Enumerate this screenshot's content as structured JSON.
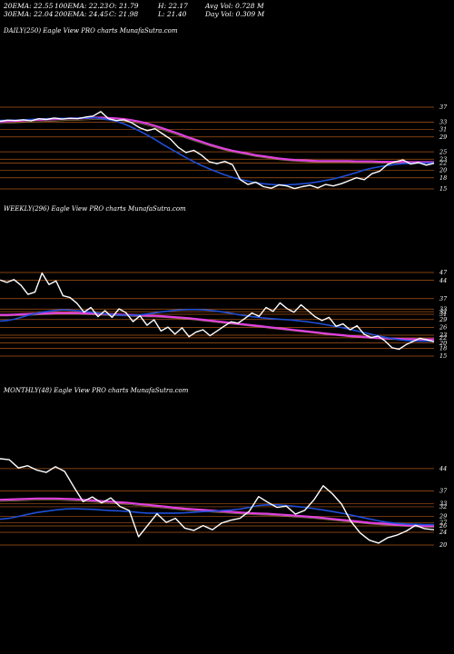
{
  "header": {
    "ema20": "20EMA: 22.55",
    "ema100": "100EMA: 22.23",
    "open": "O: 21.79",
    "high": "H: 22.17",
    "avgvol": "Avg Vol: 0.728  M",
    "ema30": "30EMA: 22.04",
    "ema200": "200EMA: 24.45",
    "close": "C: 21.98",
    "low": "L: 21.40",
    "dayvol": "Day Vol: 0.309 M"
  },
  "colors": {
    "background": "#000000",
    "price": "#ffffff",
    "ema_fast": "#1f4fd8",
    "ema_slow": "#e040e0",
    "grid": "#c8641e",
    "ema_mid": "#b8a060"
  },
  "chart_data": [
    {
      "type": "line",
      "title": "DAILY(250) Eagle  View  PRO charts MunafaSutra.com",
      "ticks": [
        "37",
        "33",
        "31",
        "29",
        "25",
        "23",
        "22",
        "20",
        "18",
        "15"
      ],
      "series": [
        {
          "values": [
            33.2,
            33.5,
            33.4,
            33.6,
            33.3,
            33.9,
            33.7,
            34.1,
            33.8,
            34.0,
            33.9,
            34.3,
            34.6,
            35.8,
            33.9,
            33.4,
            33.6,
            32.8,
            31.5,
            30.7,
            31.2,
            29.8,
            28.4,
            26.2,
            24.8,
            25.4,
            24.1,
            22.3,
            21.8,
            22.4,
            21.5,
            17.5,
            16.2,
            16.8,
            15.6,
            15.2,
            16.1,
            15.8,
            15.1,
            15.6,
            16.0,
            15.3,
            16.2,
            15.8,
            16.4,
            17.2,
            18.0,
            17.5,
            19.1,
            19.8,
            21.6,
            22.3,
            22.8,
            21.7,
            22.1,
            21.4,
            21.9
          ]
        },
        {
          "values": [
            33.4,
            33.5,
            33.5,
            33.6,
            33.7,
            33.8,
            33.9,
            34.0,
            34.0,
            34.0,
            34.1,
            34.1,
            34.2,
            34.0,
            33.6,
            33.2,
            32.5,
            31.6,
            30.6,
            29.5,
            28.3,
            27.0,
            25.8,
            24.6,
            23.4,
            22.3,
            21.3,
            20.4,
            19.6,
            18.8,
            18.1,
            17.6,
            17.1,
            16.7,
            16.4,
            16.2,
            16.1,
            16.1,
            16.2,
            16.4,
            16.6,
            16.9,
            17.3,
            17.7,
            18.2,
            18.8,
            19.4,
            20.1,
            20.6,
            21.0,
            21.3,
            21.6,
            21.8,
            21.9,
            22.0,
            22.0,
            22.0
          ]
        },
        {
          "values": [
            33.1,
            33.2,
            33.3,
            33.4,
            33.5,
            33.6,
            33.7,
            33.8,
            33.9,
            34.0,
            34.0,
            34.1,
            34.2,
            34.2,
            34.1,
            34.0,
            33.8,
            33.5,
            33.1,
            32.6,
            32.0,
            31.3,
            30.6,
            29.9,
            29.1,
            28.4,
            27.7,
            27.0,
            26.4,
            25.8,
            25.3,
            24.9,
            24.5,
            24.1,
            23.8,
            23.5,
            23.2,
            23.0,
            22.8,
            22.7,
            22.6,
            22.5,
            22.5,
            22.5,
            22.5,
            22.5,
            22.4,
            22.4,
            22.4,
            22.3,
            22.3,
            22.3,
            22.3,
            22.2,
            22.2,
            22.2,
            22.2
          ]
        }
      ]
    },
    {
      "type": "line",
      "title": "WEEKLY(296) Eagle  View  PRO charts MunafaSutra.com",
      "ticks": [
        "47",
        "44",
        "37",
        "33",
        "32",
        "31",
        "29",
        "26",
        "23",
        "22",
        "20",
        "18",
        "15"
      ],
      "series": [
        {
          "values": [
            44.1,
            43.2,
            44.3,
            42.1,
            38.6,
            39.5,
            46.8,
            42.4,
            43.8,
            38.1,
            37.4,
            35.2,
            31.8,
            33.6,
            30.1,
            32.4,
            29.8,
            33.1,
            31.6,
            28.2,
            30.4,
            26.8,
            28.9,
            24.6,
            26.1,
            23.4,
            25.8,
            22.4,
            24.2,
            25.1,
            22.8,
            24.6,
            26.4,
            28.1,
            27.6,
            29.4,
            31.5,
            30.2,
            33.6,
            32.1,
            35.4,
            33.2,
            31.8,
            34.6,
            32.4,
            30.1,
            28.6,
            29.8,
            26.4,
            27.3,
            25.1,
            26.6,
            23.4,
            22.1,
            22.6,
            20.8,
            18.2,
            17.6,
            19.4,
            20.6,
            21.8,
            21.2,
            20.5
          ]
        },
        {
          "values": [
            28.4,
            28.6,
            29.1,
            29.8,
            30.6,
            31.2,
            31.8,
            32.2,
            32.5,
            32.7,
            32.6,
            32.4,
            32.1,
            31.8,
            31.5,
            31.2,
            30.9,
            30.7,
            30.6,
            30.6,
            30.8,
            31.1,
            31.5,
            31.9,
            32.2,
            32.5,
            32.7,
            32.8,
            32.8,
            32.7,
            32.5,
            32.2,
            31.8,
            31.4,
            30.9,
            30.5,
            30.1,
            29.8,
            29.5,
            29.3,
            29.1,
            28.9,
            28.7,
            28.4,
            28.1,
            27.7,
            27.3,
            26.8,
            26.3,
            25.8,
            25.2,
            24.6,
            24.0,
            23.4,
            22.8,
            22.2,
            21.7,
            21.3,
            21.0,
            20.8,
            20.7,
            20.7,
            20.7
          ]
        },
        {
          "values": [
            30.8,
            30.8,
            30.9,
            31.0,
            31.1,
            31.2,
            31.3,
            31.4,
            31.5,
            31.5,
            31.5,
            31.5,
            31.4,
            31.3,
            31.2,
            31.1,
            31.0,
            30.9,
            30.8,
            30.7,
            30.6,
            30.5,
            30.4,
            30.3,
            30.1,
            29.9,
            29.7,
            29.5,
            29.2,
            28.9,
            28.6,
            28.3,
            28.0,
            27.7,
            27.4,
            27.1,
            26.8,
            26.5,
            26.2,
            25.9,
            25.6,
            25.3,
            25.0,
            24.7,
            24.4,
            24.1,
            23.8,
            23.5,
            23.2,
            23.0,
            22.7,
            22.5,
            22.3,
            22.1,
            21.9,
            21.8,
            21.7,
            21.6,
            21.5,
            21.5,
            21.4,
            21.4,
            21.4
          ]
        }
      ]
    },
    {
      "type": "line",
      "title": "MONTHLY(48) Eagle  View  PRO charts MunafaSutra.com",
      "ticks": [
        "44",
        "37",
        "33",
        "32",
        "29",
        "27",
        "26",
        "24",
        "20"
      ],
      "series": [
        {
          "values": [
            47.1,
            46.8,
            44.2,
            44.9,
            43.5,
            42.8,
            44.6,
            43.1,
            38.2,
            33.6,
            35.1,
            33.2,
            34.8,
            32.1,
            30.8,
            22.6,
            26.2,
            29.8,
            27.1,
            28.4,
            25.3,
            24.6,
            26.1,
            24.8,
            26.9,
            27.8,
            28.4,
            30.6,
            35.2,
            33.4,
            31.8,
            32.2,
            29.7,
            30.9,
            34.2,
            38.6,
            36.1,
            32.8,
            27.4,
            23.8,
            21.5,
            20.6,
            22.3,
            23.1,
            24.4,
            26.2,
            25.1,
            24.8
          ]
        },
        {
          "values": [
            28.1,
            28.4,
            29.0,
            29.6,
            30.2,
            30.6,
            31.0,
            31.3,
            31.4,
            31.3,
            31.2,
            31.0,
            30.8,
            30.7,
            30.5,
            30.2,
            30.0,
            30.0,
            30.0,
            30.0,
            30.1,
            30.3,
            30.5,
            30.6,
            30.8,
            31.0,
            31.3,
            31.8,
            32.4,
            32.6,
            32.6,
            32.4,
            32.1,
            31.8,
            31.4,
            31.0,
            30.5,
            30.0,
            29.4,
            28.8,
            28.2,
            27.6,
            27.1,
            26.8,
            26.6,
            26.5,
            26.4,
            26.4
          ]
        },
        {
          "values": [
            34.2,
            34.3,
            34.4,
            34.5,
            34.6,
            34.6,
            34.6,
            34.5,
            34.4,
            34.2,
            34.0,
            33.8,
            33.6,
            33.4,
            33.2,
            32.9,
            32.6,
            32.3,
            32.0,
            31.7,
            31.4,
            31.2,
            31.0,
            30.8,
            30.6,
            30.4,
            30.2,
            30.0,
            29.9,
            29.8,
            29.6,
            29.4,
            29.2,
            29.0,
            28.8,
            28.5,
            28.2,
            27.9,
            27.6,
            27.3,
            27.0,
            26.8,
            26.6,
            26.4,
            26.2,
            26.1,
            26.0,
            25.9
          ]
        }
      ]
    }
  ]
}
